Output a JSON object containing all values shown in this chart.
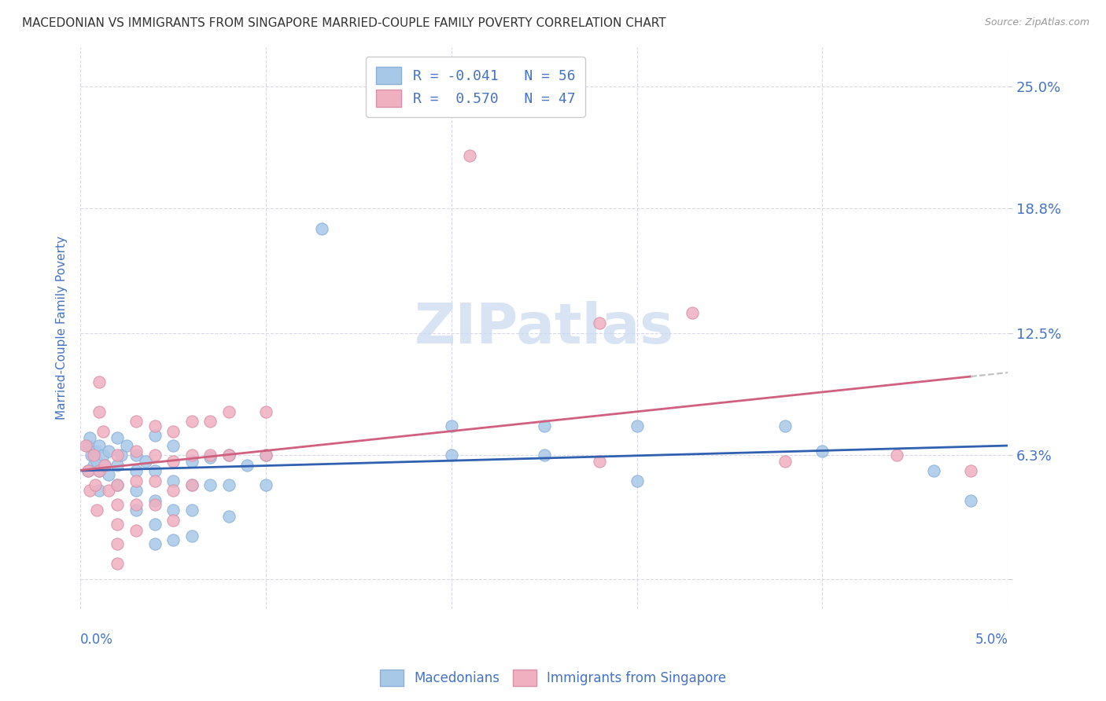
{
  "title": "MACEDONIAN VS IMMIGRANTS FROM SINGAPORE MARRIED-COUPLE FAMILY POVERTY CORRELATION CHART",
  "source": "Source: ZipAtlas.com",
  "ylabel": "Married-Couple Family Poverty",
  "ytick_labels": [
    "",
    "6.3%",
    "12.5%",
    "18.8%",
    "25.0%"
  ],
  "ytick_values": [
    0.0,
    0.063,
    0.125,
    0.188,
    0.25
  ],
  "xlim": [
    0.0,
    0.05
  ],
  "ylim": [
    -0.015,
    0.27
  ],
  "text_color": "#4472c4",
  "blue_scatter_color": "#a8c8e8",
  "pink_scatter_color": "#f0b0c0",
  "blue_line_color": "#3060b0",
  "pink_line_color": "#d06080",
  "grid_color": "#d8d8e8",
  "watermark_color": "#c8d8ee",
  "macedonian_points": [
    [
      0.0004,
      0.068
    ],
    [
      0.0004,
      0.055
    ],
    [
      0.0005,
      0.072
    ],
    [
      0.0006,
      0.063
    ],
    [
      0.0007,
      0.058
    ],
    [
      0.0008,
      0.065
    ],
    [
      0.0009,
      0.06
    ],
    [
      0.001,
      0.068
    ],
    [
      0.001,
      0.055
    ],
    [
      0.001,
      0.045
    ],
    [
      0.0012,
      0.063
    ],
    [
      0.0013,
      0.058
    ],
    [
      0.0015,
      0.065
    ],
    [
      0.0015,
      0.053
    ],
    [
      0.002,
      0.072
    ],
    [
      0.002,
      0.058
    ],
    [
      0.002,
      0.048
    ],
    [
      0.0022,
      0.063
    ],
    [
      0.0025,
      0.068
    ],
    [
      0.003,
      0.063
    ],
    [
      0.003,
      0.055
    ],
    [
      0.003,
      0.045
    ],
    [
      0.003,
      0.035
    ],
    [
      0.0035,
      0.06
    ],
    [
      0.004,
      0.073
    ],
    [
      0.004,
      0.055
    ],
    [
      0.004,
      0.04
    ],
    [
      0.004,
      0.028
    ],
    [
      0.004,
      0.018
    ],
    [
      0.005,
      0.068
    ],
    [
      0.005,
      0.05
    ],
    [
      0.005,
      0.035
    ],
    [
      0.005,
      0.02
    ],
    [
      0.006,
      0.06
    ],
    [
      0.006,
      0.048
    ],
    [
      0.006,
      0.035
    ],
    [
      0.006,
      0.022
    ],
    [
      0.007,
      0.062
    ],
    [
      0.007,
      0.048
    ],
    [
      0.008,
      0.063
    ],
    [
      0.008,
      0.048
    ],
    [
      0.008,
      0.032
    ],
    [
      0.009,
      0.058
    ],
    [
      0.01,
      0.063
    ],
    [
      0.01,
      0.048
    ],
    [
      0.013,
      0.178
    ],
    [
      0.02,
      0.078
    ],
    [
      0.02,
      0.063
    ],
    [
      0.025,
      0.078
    ],
    [
      0.025,
      0.063
    ],
    [
      0.03,
      0.078
    ],
    [
      0.03,
      0.05
    ],
    [
      0.038,
      0.078
    ],
    [
      0.04,
      0.065
    ],
    [
      0.046,
      0.055
    ],
    [
      0.048,
      0.04
    ]
  ],
  "singapore_points": [
    [
      0.0003,
      0.068
    ],
    [
      0.0004,
      0.055
    ],
    [
      0.0005,
      0.045
    ],
    [
      0.0007,
      0.063
    ],
    [
      0.0008,
      0.048
    ],
    [
      0.0009,
      0.035
    ],
    [
      0.001,
      0.1
    ],
    [
      0.001,
      0.085
    ],
    [
      0.001,
      0.055
    ],
    [
      0.0012,
      0.075
    ],
    [
      0.0013,
      0.058
    ],
    [
      0.0015,
      0.045
    ],
    [
      0.002,
      0.063
    ],
    [
      0.002,
      0.048
    ],
    [
      0.002,
      0.038
    ],
    [
      0.002,
      0.028
    ],
    [
      0.002,
      0.018
    ],
    [
      0.002,
      0.008
    ],
    [
      0.003,
      0.08
    ],
    [
      0.003,
      0.065
    ],
    [
      0.003,
      0.05
    ],
    [
      0.003,
      0.038
    ],
    [
      0.003,
      0.025
    ],
    [
      0.004,
      0.078
    ],
    [
      0.004,
      0.063
    ],
    [
      0.004,
      0.05
    ],
    [
      0.004,
      0.038
    ],
    [
      0.005,
      0.075
    ],
    [
      0.005,
      0.06
    ],
    [
      0.005,
      0.045
    ],
    [
      0.005,
      0.03
    ],
    [
      0.006,
      0.08
    ],
    [
      0.006,
      0.063
    ],
    [
      0.006,
      0.048
    ],
    [
      0.007,
      0.08
    ],
    [
      0.007,
      0.063
    ],
    [
      0.008,
      0.085
    ],
    [
      0.008,
      0.063
    ],
    [
      0.01,
      0.085
    ],
    [
      0.01,
      0.063
    ],
    [
      0.021,
      0.215
    ],
    [
      0.028,
      0.13
    ],
    [
      0.028,
      0.06
    ],
    [
      0.033,
      0.135
    ],
    [
      0.038,
      0.06
    ],
    [
      0.044,
      0.063
    ],
    [
      0.048,
      0.055
    ]
  ]
}
